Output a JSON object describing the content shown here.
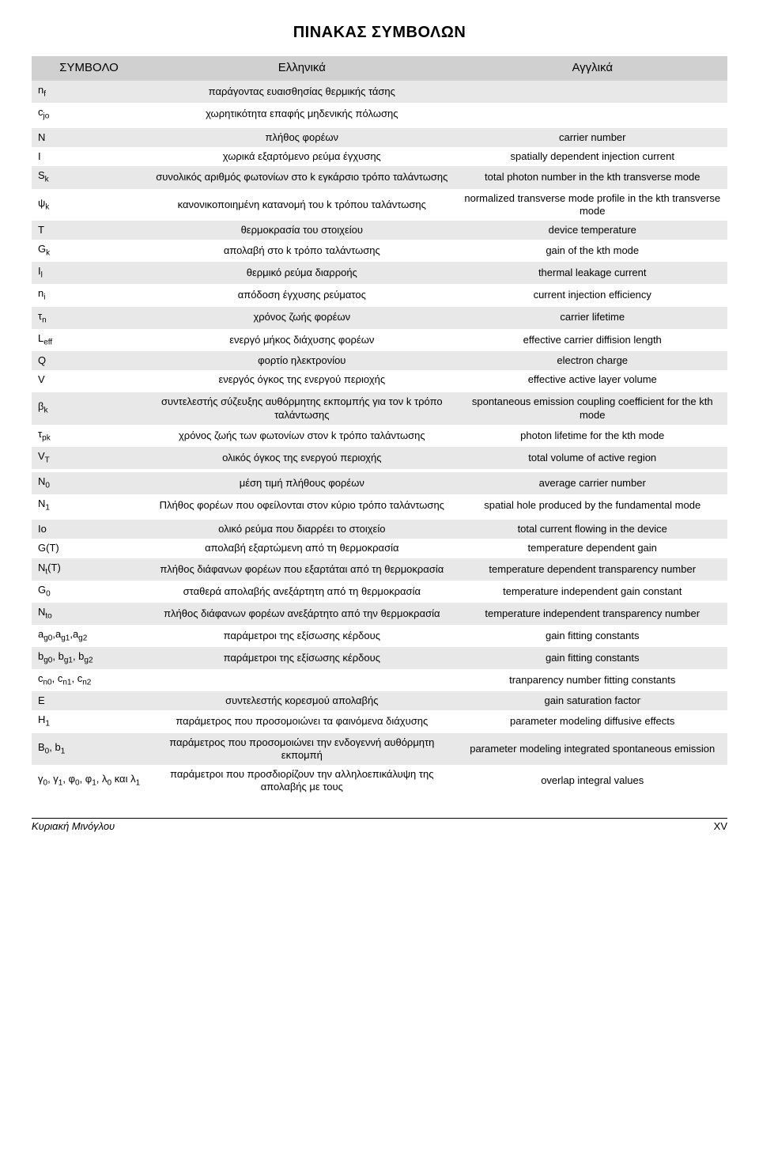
{
  "title": "ΠΙΝΑΚΑΣ ΣΥΜΒΟΛΩΝ",
  "colors": {
    "header_bg": "#d0d0d0",
    "odd_bg": "#e8e8e8",
    "even_bg": "#ffffff",
    "text": "#000000"
  },
  "columns": {
    "symbol": "ΣΥΜΒΟΛΟ",
    "greek": "Ελληνικά",
    "english": "Αγγλικά"
  },
  "column_widths_pct": [
    14,
    46,
    40
  ],
  "font_sizes_pt": {
    "title": 15,
    "header": 11,
    "body": 10,
    "footer": 10
  },
  "groups": [
    {
      "rows": [
        {
          "sym": "n_f",
          "sym_html": "n<span class='sub'>f</span>",
          "gr": "παράγοντας ευαισθησίας θερμικής τάσης",
          "en": ""
        },
        {
          "sym": "c_jo",
          "sym_html": "c<span class='sub'>jo</span>",
          "gr": "χωρητικότητα επαφής μηδενικής πόλωσης",
          "en": ""
        }
      ]
    },
    {
      "rows": [
        {
          "sym": "N",
          "sym_html": "N",
          "gr": "πλήθος φορέων",
          "en": "carrier number"
        },
        {
          "sym": "I",
          "sym_html": "I",
          "gr": "χωρικά εξαρτόμενο ρεύμα έγχυσης",
          "en": "spatially dependent injection current"
        },
        {
          "sym": "S_k",
          "sym_html": "S<span class='sub'>k</span>",
          "gr": "συνολικός αριθμός φωτονίων στο k εγκάρσιο τρόπο ταλάντωσης",
          "en": "total photon number in the kth transverse mode"
        },
        {
          "sym": "ψ_k",
          "sym_html": "ψ<span class='sub'>k</span>",
          "gr": "κανονικοποιημένη κατανομή του k τρόπου ταλάντωσης",
          "en": "normalized transverse mode profile in the kth transverse mode"
        },
        {
          "sym": "T",
          "sym_html": "T",
          "gr": "θερμοκρασία του στοιχείου",
          "en": "device temperature"
        },
        {
          "sym": "G_k",
          "sym_html": "G<span class='sub'>k</span>",
          "gr": "απολαβή στο k τρόπο ταλάντωσης",
          "en": "gain of the kth mode"
        },
        {
          "sym": "I_l",
          "sym_html": "I<span class='sub'>l</span>",
          "gr": "θερμικό ρεύμα διαρροής",
          "en": "thermal leakage current"
        },
        {
          "sym": "n_i",
          "sym_html": "n<span class='sub'>i</span>",
          "gr": "απόδοση έγχυσης ρεύματος",
          "en": "current injection efficiency"
        },
        {
          "sym": "τ_n",
          "sym_html": "τ<span class='sub'>n</span>",
          "gr": "χρόνος ζωής φορέων",
          "en": "carrier lifetime"
        },
        {
          "sym": "L_eff",
          "sym_html": "L<span class='sub'>eff</span>",
          "gr": "ενεργό μήκος διάχυσης φορέων",
          "en": "effective carrier diffision length"
        },
        {
          "sym": "Q",
          "sym_html": "Q",
          "gr": "φορτίο ηλεκτρονίου",
          "en": "electron charge"
        },
        {
          "sym": "V",
          "sym_html": "V",
          "gr": "ενεργός όγκος της ενεργού περιοχής",
          "en": "effective active layer volume"
        }
      ]
    },
    {
      "rows": [
        {
          "sym": "β_k",
          "sym_html": "β<span class='sub'>k</span>",
          "gr": "συντελεστής σύζευξης αυθόρμητης εκπομπής για τον k τρόπο ταλάντωσης",
          "en": "spontaneous emission coupling coefficient for the kth mode"
        },
        {
          "sym": "τ_pk",
          "sym_html": "τ<span class='sub'>pk</span>",
          "gr": "χρόνος ζωής των φωτονίων στον k τρόπο ταλάντωσης",
          "en": "photon lifetime for the kth mode"
        },
        {
          "sym": "V_T",
          "sym_html": "V<span class='sub'>T</span>",
          "gr": "ολικός όγκος της ενεργού περιοχής",
          "en": "total volume of active region"
        }
      ]
    },
    {
      "rows": [
        {
          "sym": "N_0",
          "sym_html": "N<span class='sub'>0</span>",
          "gr": "μέση τιμή πλήθους φορέων",
          "en": "average carrier number"
        },
        {
          "sym": "N_1",
          "sym_html": "N<span class='sub'>1</span>",
          "gr": "Πλήθος φορέων που οφείλονται στον κύριο τρόπο ταλάντωσης",
          "en": "spatial hole produced by the fundamental mode"
        }
      ]
    },
    {
      "rows": [
        {
          "sym": "Io",
          "sym_html": "Io",
          "gr": "ολικό ρεύμα που διαρρέει το στοιχείο",
          "en": "total current flowing in the device"
        },
        {
          "sym": "G(T)",
          "sym_html": "G(T)",
          "gr": "απολαβή εξαρτώμενη από τη θερμοκρασία",
          "en": "temperature dependent gain"
        },
        {
          "sym": "N_t(T)",
          "sym_html": "N<span class='sub'>t</span>(T)",
          "gr": "πλήθος διάφανων φορέων που εξαρτάται από τη θερμοκρασία",
          "en": "temperature dependent transparency number"
        },
        {
          "sym": "G_0",
          "sym_html": "G<span class='sub'>0</span>",
          "gr": "σταθερά απολαβής ανεξάρτητη από τη θερμοκρασία",
          "en": "temperature independent gain constant"
        },
        {
          "sym": "N_to",
          "sym_html": "N<span class='sub'>to</span>",
          "gr": "πλήθος διάφανων φορέων ανεξάρτητο από την θερμοκρασία",
          "en": "temperature independent transparency number"
        },
        {
          "sym": "a_g",
          "sym_html": "a<span class='sub'>g0</span>,a<span class='sub'>g1</span>,a<span class='sub'>g2</span>",
          "gr": "παράμετροι της εξίσωσης κέρδους",
          "en": "gain fitting constants"
        },
        {
          "sym": "b_g",
          "sym_html": "b<span class='sub'>g0</span>, b<span class='sub'>g1</span>, b<span class='sub'>g2</span>",
          "gr": "παράμετροι της εξίσωσης κέρδους",
          "en": "gain fitting constants"
        },
        {
          "sym": "c_n",
          "sym_html": "c<span class='sub'>n0</span>, c<span class='sub'>n1</span>, c<span class='sub'>n2</span>",
          "gr": "",
          "en": "tranparency number fitting constants"
        },
        {
          "sym": "E",
          "sym_html": "E",
          "gr": "συντελεστής κορεσμού απολαβής",
          "en": "gain saturation factor"
        },
        {
          "sym": "H_1",
          "sym_html": "H<span class='sub'>1</span>",
          "gr": "παράμετρος που προσομοιώνει τα φαινόμενα διάχυσης",
          "en": "parameter modeling diffusive effects"
        },
        {
          "sym": "B_0,b_1",
          "sym_html": "B<span class='sub'>0</span>, b<span class='sub'>1</span>",
          "gr": "παράμετρος που προσομοιώνει την ενδογεννή αυθόρμητη εκπομπή",
          "en": "parameter modeling integrated spontaneous emission"
        },
        {
          "sym": "γφλ",
          "sym_html": "γ<span class='sub'>0</span>, γ<span class='sub'>1</span>, φ<span class='sub'>0</span>, φ<span class='sub'>1</span>, λ<span class='sub'>0</span> και λ<span class='sub'>1</span>",
          "gr": "παράμετροι που προσδιορίζουν την αλληλοεπικάλυψη της απολαβής με τους",
          "en": "overlap integral values"
        }
      ]
    }
  ],
  "footer": {
    "author": "Κυριακή Μινόγλου",
    "page_number": "XV"
  }
}
